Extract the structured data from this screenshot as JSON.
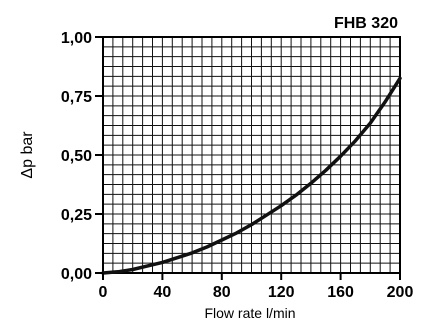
{
  "chart_data": {
    "type": "line",
    "title": "FHB 320",
    "xlabel": "Flow rate l/min",
    "ylabel": "Δp bar",
    "xlim": [
      0,
      200
    ],
    "ylim": [
      0,
      1.0
    ],
    "x_ticks": [
      "0",
      "40",
      "80",
      "120",
      "160",
      "200"
    ],
    "y_ticks": [
      "0,00",
      "0,25",
      "0,50",
      "0,75",
      "1,00"
    ],
    "grid": true,
    "series": [
      {
        "x": [
          0,
          10,
          20,
          30,
          40,
          50,
          60,
          70,
          80,
          90,
          100,
          110,
          120,
          130,
          140,
          150,
          160,
          170,
          180,
          190,
          200
        ],
        "y": [
          0.0,
          0.005,
          0.015,
          0.03,
          0.045,
          0.065,
          0.085,
          0.11,
          0.14,
          0.17,
          0.205,
          0.245,
          0.285,
          0.33,
          0.38,
          0.435,
          0.495,
          0.56,
          0.635,
          0.725,
          0.825
        ]
      }
    ],
    "color": "#111111"
  }
}
